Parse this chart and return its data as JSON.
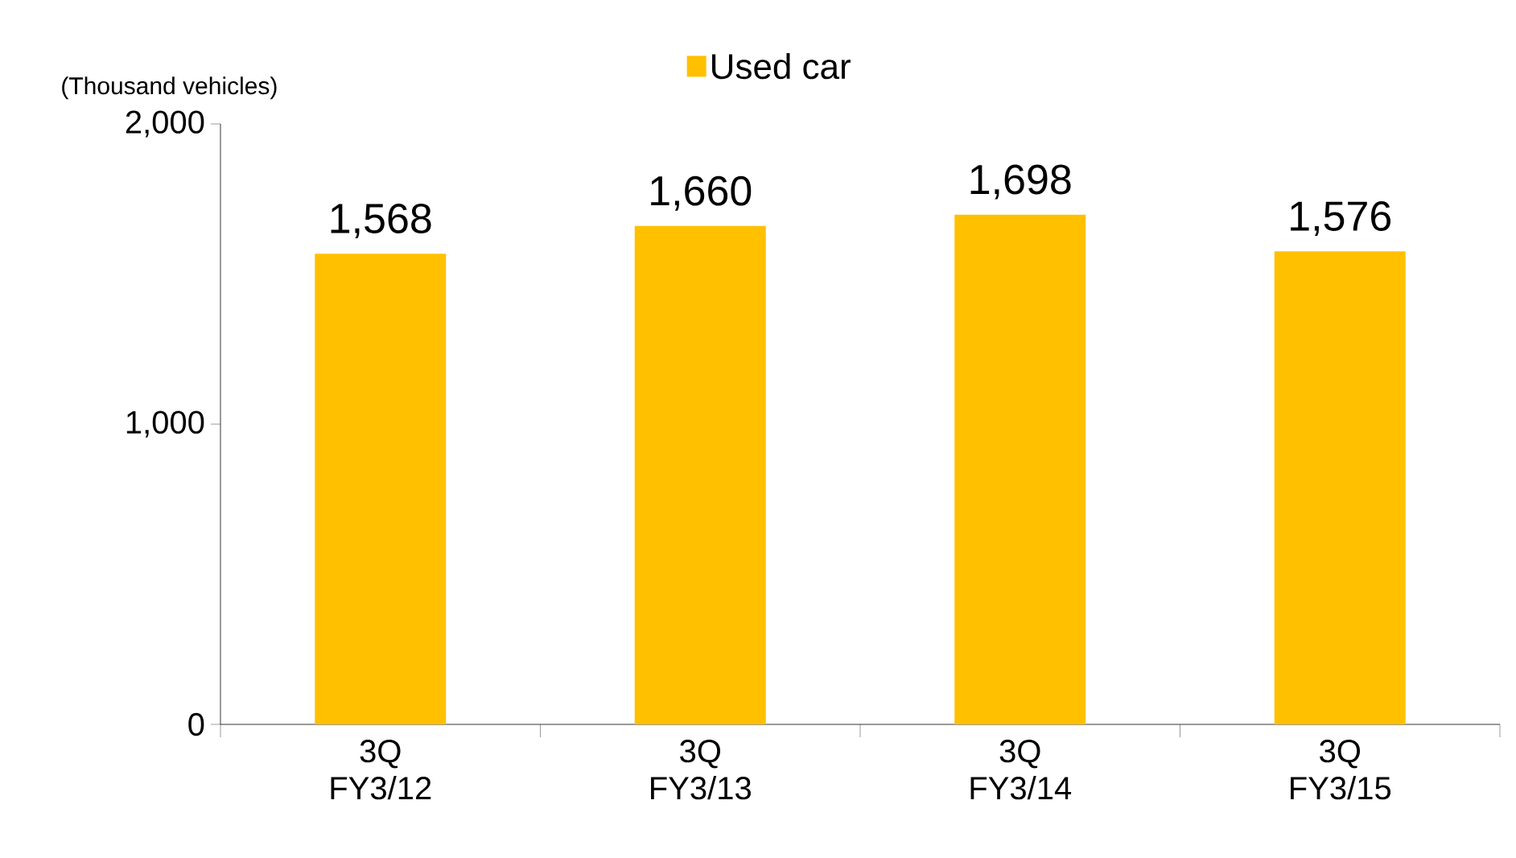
{
  "chart_data": {
    "type": "bar",
    "ylabel": "(Thousand vehicles)",
    "categories": [
      "3Q FY3/12",
      "3Q FY3/13",
      "3Q FY3/14",
      "3Q FY3/15"
    ],
    "series": [
      {
        "name": "Used car",
        "color": "#ffc000",
        "values": [
          1568,
          1660,
          1698,
          1576
        ]
      }
    ],
    "value_labels": [
      "1,568",
      "1,660",
      "1,698",
      "1,576"
    ],
    "ylim": [
      0,
      2000
    ],
    "yticks": [
      {
        "value": 0,
        "label": "0"
      },
      {
        "value": 1000,
        "label": "1,000"
      },
      {
        "value": 2000,
        "label": "2,000"
      }
    ],
    "legend": "top"
  }
}
